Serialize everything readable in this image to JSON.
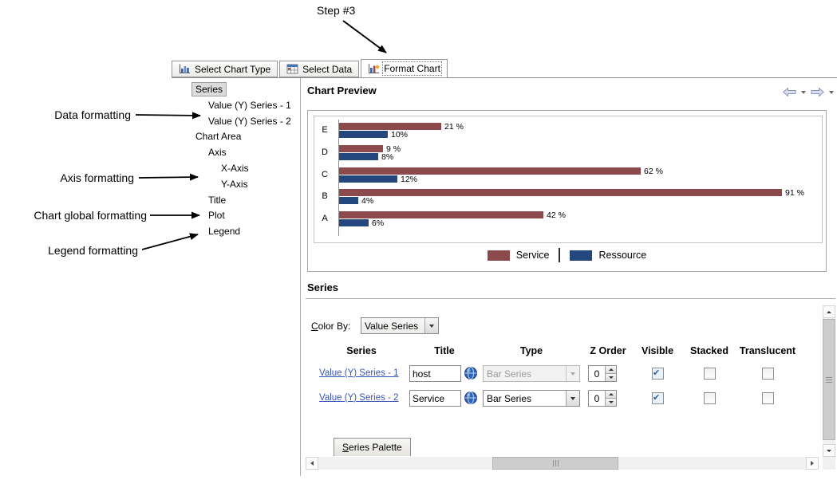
{
  "step_annotation": "Step #3",
  "side_annotations": {
    "data": "Data formatting",
    "axis": "Axis formatting",
    "global": "Chart global formatting",
    "legend": "Legend formatting"
  },
  "tabs": [
    {
      "label": "Select Chart Type",
      "active": false
    },
    {
      "label": "Select Data",
      "active": false
    },
    {
      "label": "Format Chart",
      "active": true
    }
  ],
  "tree": {
    "items": [
      {
        "label": "Series",
        "level": 0,
        "selected": true
      },
      {
        "label": "Value (Y) Series - 1",
        "level": 1,
        "selected": false
      },
      {
        "label": "Value (Y) Series - 2",
        "level": 1,
        "selected": false
      },
      {
        "label": "Chart Area",
        "level": 0,
        "selected": false
      },
      {
        "label": "Axis",
        "level": 1,
        "selected": false
      },
      {
        "label": "X-Axis",
        "level": 2,
        "selected": false
      },
      {
        "label": "Y-Axis",
        "level": 2,
        "selected": false
      },
      {
        "label": "Title",
        "level": 1,
        "selected": false
      },
      {
        "label": "Plot",
        "level": 1,
        "selected": false
      },
      {
        "label": "Legend",
        "level": 1,
        "selected": false
      }
    ]
  },
  "chart_preview": {
    "title": "Chart Preview",
    "chart_data": {
      "type": "bar",
      "orientation": "horizontal",
      "categories": [
        "E",
        "D",
        "C",
        "B",
        "A"
      ],
      "series": [
        {
          "name": "Service",
          "color": "#8D4A4D",
          "values": [
            21,
            9,
            62,
            91,
            42
          ],
          "labels": [
            "21 %",
            "9 %",
            "62 %",
            "91 %",
            "42 %"
          ]
        },
        {
          "name": "Ressource",
          "color": "#23477E",
          "values": [
            10,
            8,
            12,
            4,
            6
          ],
          "labels": [
            "10%",
            "8%",
            "12%",
            "4%",
            "6%"
          ]
        }
      ],
      "xlim": [
        0,
        100
      ],
      "legend_position": "bottom"
    }
  },
  "series_section": {
    "title": "Series",
    "color_by": {
      "label": "Color By:",
      "value": "Value Series"
    },
    "table": {
      "headers": {
        "series": "Series",
        "title": "Title",
        "type": "Type",
        "z_order": "Z Order",
        "visible": "Visible",
        "stacked": "Stacked",
        "translucent": "Translucent"
      },
      "rows": [
        {
          "series": "Value (Y) Series - 1",
          "title": "host",
          "type": "Bar Series",
          "type_enabled": false,
          "z_order": "0",
          "visible": true,
          "stacked": false,
          "translucent": false
        },
        {
          "series": "Value (Y) Series - 2",
          "title": "Service",
          "type": "Bar Series",
          "type_enabled": true,
          "z_order": "0",
          "visible": true,
          "stacked": false,
          "translucent": false
        }
      ]
    },
    "palette_tab": "Series Palette"
  }
}
